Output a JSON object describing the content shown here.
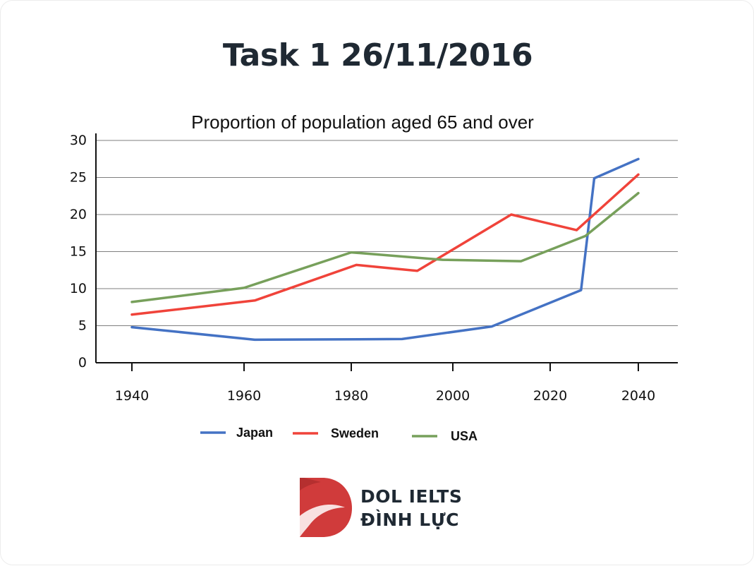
{
  "page": {
    "title": "Task 1 26/11/2016"
  },
  "chart_data": {
    "type": "line",
    "title": "Proportion of population aged 65 and over",
    "xlabel": "",
    "ylabel": "",
    "xlim": [
      1935,
      2049
    ],
    "ylim": [
      0,
      30
    ],
    "x_ticks": [
      1940,
      1960,
      1980,
      2000,
      2020,
      2040
    ],
    "y_ticks": [
      0,
      5,
      10,
      15,
      20,
      25,
      30
    ],
    "grid": "horizontal",
    "legend_position": "bottom",
    "series": [
      {
        "name": "Japan",
        "color": "#4472c4",
        "points": [
          [
            1940,
            4.8
          ],
          [
            1962,
            3.1
          ],
          [
            1990,
            3.2
          ],
          [
            2008,
            4.9
          ],
          [
            2027,
            9.8
          ],
          [
            2030,
            24.9
          ],
          [
            2040,
            27.5
          ]
        ]
      },
      {
        "name": "Sweden",
        "color": "#f0433a",
        "points": [
          [
            1940,
            6.5
          ],
          [
            1962,
            8.4
          ],
          [
            1981,
            13.2
          ],
          [
            1993,
            12.4
          ],
          [
            2012,
            20.0
          ],
          [
            2026,
            17.9
          ],
          [
            2040,
            25.4
          ]
        ]
      },
      {
        "name": "USA",
        "color": "#77a05b",
        "points": [
          [
            1940,
            8.2
          ],
          [
            1960,
            10.1
          ],
          [
            1980,
            14.9
          ],
          [
            1998,
            13.9
          ],
          [
            2014,
            13.7
          ],
          [
            2028,
            17.1
          ],
          [
            2040,
            22.9
          ]
        ]
      }
    ]
  },
  "branding": {
    "logo_icon": "dol-logo-icon",
    "line1": "DOL IELTS",
    "line2": "ĐÌNH LỰC",
    "accent_color": "#d03b3b"
  }
}
